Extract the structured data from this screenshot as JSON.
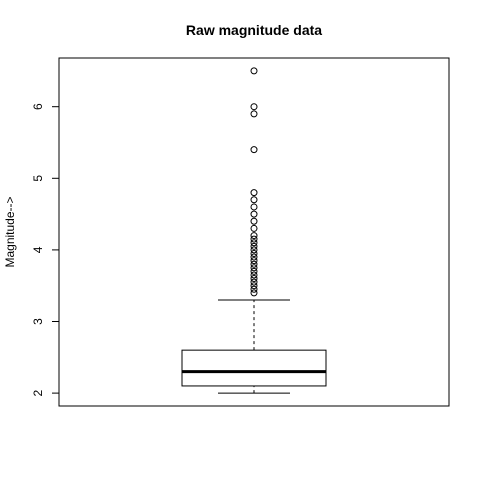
{
  "chart_data": {
    "type": "box",
    "title": "Raw magnitude data",
    "xlabel": "",
    "ylabel": "Magnitude-->",
    "ylim": [
      1.82,
      6.68
    ],
    "yticks": [
      2,
      3,
      4,
      5,
      6
    ],
    "grid": false,
    "box": {
      "whisker_low": 2.0,
      "q1": 2.1,
      "median": 2.3,
      "q3": 2.6,
      "whisker_high": 3.3
    },
    "outliers": [
      3.4,
      3.45,
      3.5,
      3.55,
      3.6,
      3.65,
      3.7,
      3.75,
      3.8,
      3.85,
      3.9,
      3.95,
      4.0,
      4.05,
      4.1,
      4.15,
      4.2,
      4.3,
      4.4,
      4.5,
      4.6,
      4.7,
      4.8,
      5.4,
      5.9,
      6.0,
      6.5
    ]
  }
}
